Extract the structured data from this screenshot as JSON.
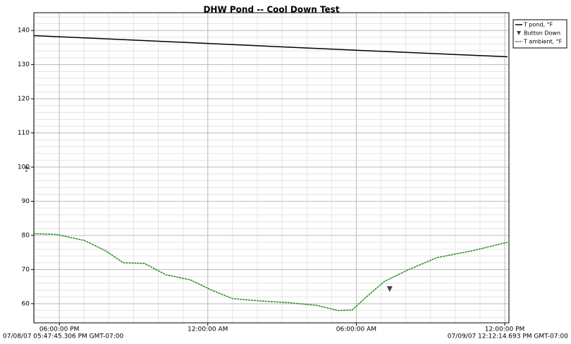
{
  "chart_data": {
    "type": "line",
    "title": "DHW Pond -- Cool Down Test",
    "y_label": "°F",
    "x_start_label": "07/08/07 05:47:45.306 PM GMT-07:00",
    "x_end_label": "07/09/07 12:12:14.693 PM GMT-07:00",
    "xlim": [
      16.97,
      36.17
    ],
    "xticks": [
      {
        "value": 18,
        "label": "06:00:00 PM"
      },
      {
        "value": 24,
        "label": "12:00:00 AM"
      },
      {
        "value": 30,
        "label": "06:00:00 AM"
      },
      {
        "value": 36,
        "label": "12:00:00 PM"
      }
    ],
    "ylim": [
      54.4,
      145.2
    ],
    "yticks": [
      60,
      70,
      80,
      90,
      100,
      110,
      120,
      130,
      140
    ],
    "grid": true,
    "series": [
      {
        "name": "T pond, °F",
        "color": "#000000",
        "style": "solid",
        "x": [
          16.97,
          24,
          30,
          36.11
        ],
        "values": [
          138.5,
          136.2,
          134.2,
          132.3
        ]
      },
      {
        "name": "Button Down",
        "color": "#444444",
        "style": "marker",
        "x": [
          31.35
        ],
        "values": [
          64.3
        ]
      },
      {
        "name": "T ambient, °F",
        "color": "#228b22",
        "style": "dashed",
        "x": [
          16.97,
          17.88,
          19.02,
          19.87,
          20.59,
          21.44,
          22.3,
          23.29,
          24.15,
          25.0,
          26.14,
          27.28,
          28.42,
          29.27,
          29.84,
          30.41,
          31.13,
          32.12,
          33.26,
          34.69,
          36.11
        ],
        "values": [
          80.5,
          80.3,
          78.5,
          75.5,
          72,
          71.8,
          68.5,
          67,
          64,
          61.5,
          60.8,
          60.3,
          59.5,
          58,
          58.2,
          62,
          66.5,
          70,
          73.5,
          75.5,
          78
        ]
      }
    ],
    "legend": "top-right"
  }
}
